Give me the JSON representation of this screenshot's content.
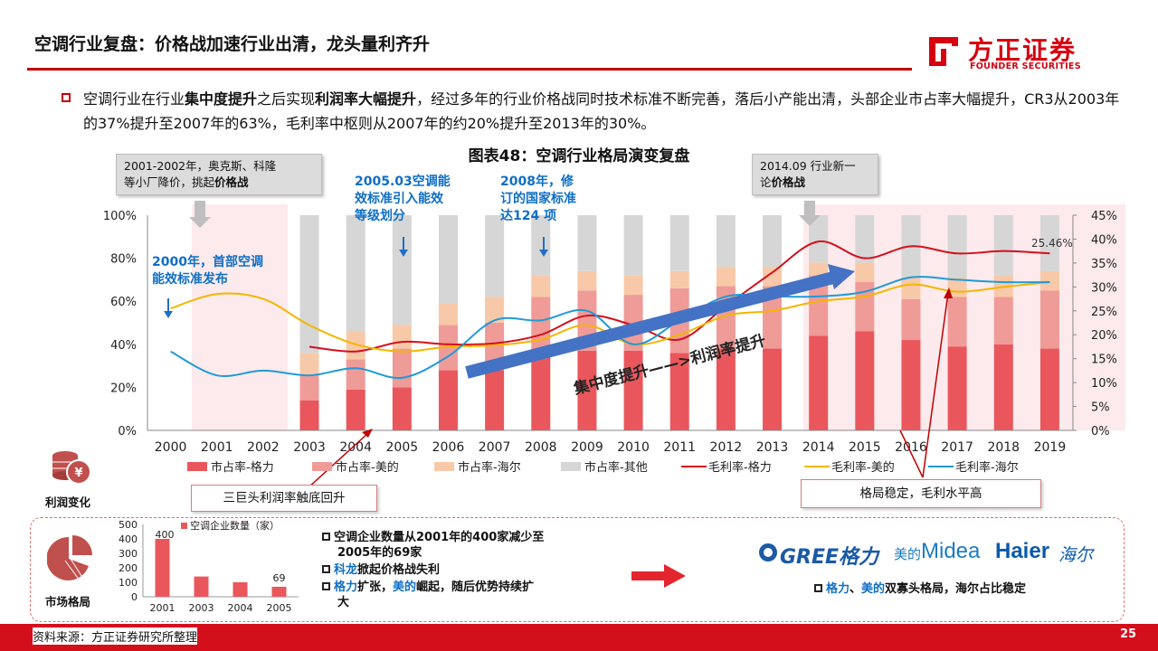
{
  "header": {
    "title": "空调行业复盘：价格战加速行业出清，龙头量利齐升",
    "logo_cn": "方正证券",
    "logo_en": "FOUNDER SECURITIES"
  },
  "intro": {
    "p1": "空调行业在行业",
    "b1": "集中度提升",
    "p2": "之后实现",
    "b2": "利润率大幅提升",
    "p3": "，经过多年的行业价格战同时技术标准不断完善，落后小产能出清，头部企业市占率大幅提升，CR3从2003年的37%提升至2007年的63%，毛利率中枢则从2007年的约20%提升至2013年的30%。"
  },
  "chart_title": "图表48：空调行业格局演变复盘",
  "callouts": {
    "c1_line1": "2001-2002年，奥克斯、科隆",
    "c1_line2": "等小厂降价，挑起",
    "c1_bold": "价格战",
    "c2_line1": "2014.09 行业新一",
    "c2_line2": "论",
    "c2_bold": "价格战",
    "n2000_l1": "2000年，首部空调",
    "n2000_l2": "能效标准发布",
    "n2005_l1": "2005.03空调能",
    "n2005_l2": "效标准引入能效",
    "n2005_l3": "等级划分",
    "n2008_l1": "2008年，修",
    "n2008_l2": "订的国家标准",
    "n2008_l3": "达124 项",
    "arrow_label": "集中度提升——>利润率提升",
    "last_label": "25.46%",
    "box_left": "三巨头利润率触底回升",
    "box_right": "格局稳定，毛利水平高"
  },
  "chart_data": {
    "type": "bar",
    "categories": [
      "2000",
      "2001",
      "2002",
      "2003",
      "2004",
      "2005",
      "2006",
      "2007",
      "2008",
      "2009",
      "2010",
      "2011",
      "2012",
      "2013",
      "2014",
      "2015",
      "2016",
      "2017",
      "2018",
      "2019"
    ],
    "y_left": {
      "ticks": [
        "0%",
        "20%",
        "40%",
        "60%",
        "80%",
        "100%"
      ],
      "ylim": [
        0,
        100
      ]
    },
    "y_right": {
      "ticks": [
        "0%",
        "5%",
        "10%",
        "15%",
        "20%",
        "25%",
        "30%",
        "35%",
        "40%",
        "45%"
      ],
      "ylim": [
        0,
        45
      ]
    },
    "series": [
      {
        "name": "市占率-格力",
        "kind": "bar",
        "color": "#e9575c",
        "values": [
          null,
          null,
          null,
          14,
          19,
          20,
          28,
          28,
          34,
          37,
          37,
          36,
          38,
          38,
          44,
          46,
          42,
          39,
          40,
          38
        ]
      },
      {
        "name": "市占率-美的",
        "kind": "bar",
        "color": "#ef9b98",
        "values": [
          null,
          null,
          null,
          12,
          14,
          18,
          21,
          22,
          28,
          28,
          26,
          30,
          29,
          29,
          28,
          23,
          19,
          23,
          22,
          27
        ]
      },
      {
        "name": "市占率-海尔",
        "kind": "bar",
        "color": "#f8c9a8",
        "values": [
          null,
          null,
          null,
          10,
          13,
          11,
          10,
          12,
          10,
          9,
          9,
          8,
          9,
          9,
          6,
          9,
          10,
          9,
          10,
          9
        ]
      },
      {
        "name": "市占率-其他",
        "kind": "bar",
        "color": "#d6d6d6",
        "values": [
          null,
          null,
          null,
          64,
          54,
          51,
          41,
          38,
          28,
          26,
          28,
          26,
          24,
          24,
          22,
          22,
          29,
          29,
          28,
          26
        ]
      },
      {
        "name": "毛利率-格力",
        "kind": "line",
        "axis": "right",
        "color": "#d40f1c",
        "values": [
          null,
          null,
          null,
          17.5,
          16.5,
          18.5,
          18,
          18.2,
          20,
          24,
          22,
          19,
          26,
          33,
          39.5,
          36,
          38.5,
          37,
          37.5,
          37
        ]
      },
      {
        "name": "毛利率-美的",
        "kind": "line",
        "axis": "right",
        "color": "#f3b600",
        "values": [
          25.5,
          28.5,
          27.5,
          22,
          18,
          16.5,
          17.5,
          17.8,
          19,
          22,
          18,
          20,
          24,
          25,
          27,
          28,
          30.5,
          29,
          30,
          31
        ]
      },
      {
        "name": "毛利率-海尔",
        "kind": "line",
        "axis": "right",
        "color": "#1f9ad6",
        "values": [
          16.5,
          11.5,
          12.5,
          11.5,
          13,
          11,
          15.5,
          23,
          23,
          25,
          18,
          23,
          28,
          28,
          28,
          29,
          32,
          31.5,
          31,
          31
        ]
      }
    ],
    "legend_position": "bottom"
  },
  "icons": {
    "profit_label": "利润变化",
    "market_label": "市场格局"
  },
  "mini_chart": {
    "legend": "空调企业数量（家）",
    "categories": [
      "2001",
      "2003",
      "2004",
      "2005"
    ],
    "values": [
      400,
      140,
      100,
      69
    ],
    "ticks": [
      "0",
      "100",
      "200",
      "300",
      "400",
      "500"
    ],
    "label_first": "400",
    "label_last": "69"
  },
  "bottom": {
    "b1_l1": "空调企业数量从2001年的400家减少至",
    "b1_l2": "2005年的69家",
    "b2_hl": "科龙",
    "b2_rest": "掀起价格战失利",
    "b3_hl1": "格力",
    "b3_mid": "扩张，",
    "b3_hl2": "美的",
    "b3_rest": "崛起，随后优势持续扩",
    "b3_l2": "大",
    "brand_gree": "GREE格力",
    "brand_midea_cn": "美的",
    "brand_midea": "Midea",
    "brand_haier": "Haier",
    "brand_haier_cn": "海尔",
    "b4_hl1": "格力",
    "b4_sep": "、",
    "b4_hl2": "美的",
    "b4_rest": "双寡头格局，海尔占比稳定"
  },
  "footer": {
    "source": "资料来源：方正证券研究所整理",
    "page": "25"
  }
}
